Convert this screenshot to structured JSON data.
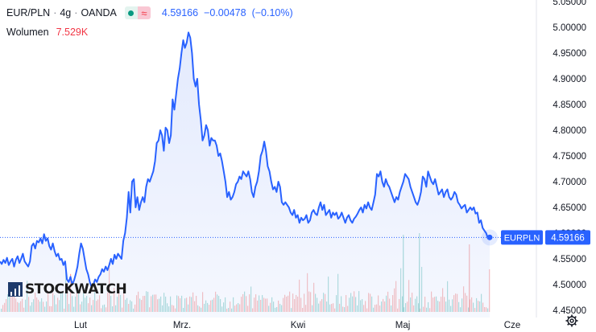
{
  "legend": {
    "symbol": "EUR/PLN",
    "interval": "4g",
    "exchange": "OANDA",
    "price": "4.59166",
    "change": "−0.00478",
    "change_pct": "(−0.10%)",
    "volume_label": "Wolumen",
    "volume_value": "7.529K",
    "icons": [
      "market-open-dot-icon",
      "approximate-data-icon"
    ]
  },
  "logo_text": "STOCKWATCH",
  "price_label": {
    "name": "EURPLN",
    "value": "4.59166"
  },
  "colors": {
    "line": "#2962ff",
    "area": "#e3eafd",
    "label_bg": "#2962ff",
    "vol_up": "#26a69a",
    "vol_down": "#ef5350"
  },
  "chart_data": {
    "type": "area",
    "title": "",
    "ylim": [
      4.43,
      5.06
    ],
    "y_ticks": [
      "4.45000",
      "4.50000",
      "4.55000",
      "4.60000",
      "4.65000",
      "4.70000",
      "4.75000",
      "4.80000",
      "4.85000",
      "4.90000",
      "4.95000",
      "5.00000",
      "5.05000"
    ],
    "x_ticks": [
      "Lut",
      "Mrz.",
      "Kwi",
      "Maj",
      "Cze"
    ],
    "last_value": 4.59166,
    "grid": false,
    "series": [
      {
        "values": [
          4.545,
          4.54,
          4.548,
          4.542,
          4.552,
          4.538,
          4.545,
          4.55,
          4.535,
          4.548,
          4.555,
          4.542,
          4.55,
          4.56,
          4.545,
          4.54,
          4.535,
          4.545,
          4.575,
          4.58,
          4.57,
          4.585,
          4.582,
          4.59,
          4.58,
          4.598,
          4.585,
          4.59,
          4.575,
          4.568,
          4.58,
          4.565,
          4.555,
          4.56,
          4.548,
          4.55,
          4.538,
          4.545,
          4.51,
          4.505,
          4.515,
          4.5,
          4.508,
          4.52,
          4.535,
          4.56,
          4.58,
          4.57,
          4.55,
          4.53,
          4.52,
          4.505,
          4.495,
          4.5,
          4.51,
          4.505,
          4.515,
          4.52,
          4.53,
          4.525,
          4.535,
          4.528,
          4.538,
          4.55,
          4.54,
          4.558,
          4.55,
          4.56,
          4.555,
          4.55,
          4.585,
          4.6,
          4.63,
          4.68,
          4.64,
          4.7,
          4.705,
          4.65,
          4.67,
          4.645,
          4.66,
          4.67,
          4.66,
          4.69,
          4.705,
          4.7,
          4.71,
          4.72,
          4.74,
          4.775,
          4.78,
          4.8,
          4.79,
          4.76,
          4.805,
          4.8,
          4.775,
          4.79,
          4.86,
          4.84,
          4.87,
          4.9,
          4.92,
          4.95,
          4.975,
          4.96,
          4.97,
          4.99,
          4.98,
          4.95,
          4.9,
          4.885,
          4.9,
          4.85,
          4.82,
          4.78,
          4.79,
          4.81,
          4.8,
          4.77,
          4.785,
          4.78,
          4.78,
          4.77,
          4.75,
          4.755,
          4.74,
          4.72,
          4.7,
          4.67,
          4.68,
          4.665,
          4.67,
          4.68,
          4.695,
          4.7,
          4.71,
          4.705,
          4.72,
          4.715,
          4.71,
          4.72,
          4.705,
          4.68,
          4.67,
          4.69,
          4.7,
          4.72,
          4.75,
          4.76,
          4.778,
          4.76,
          4.73,
          4.72,
          4.7,
          4.685,
          4.69,
          4.68,
          4.7,
          4.69,
          4.66,
          4.655,
          4.66,
          4.655,
          4.65,
          4.64,
          4.635,
          4.645,
          4.63,
          4.635,
          4.62,
          4.63,
          4.625,
          4.628,
          4.635,
          4.62,
          4.625,
          4.64,
          4.645,
          4.638,
          4.635,
          4.65,
          4.66,
          4.645,
          4.655,
          4.635,
          4.64,
          4.645,
          4.63,
          4.64,
          4.635,
          4.64,
          4.628,
          4.632,
          4.64,
          4.63,
          4.62,
          4.63,
          4.635,
          4.625,
          4.62,
          4.628,
          4.632,
          4.638,
          4.645,
          4.65,
          4.64,
          4.655,
          4.648,
          4.66,
          4.65,
          4.645,
          4.66,
          4.675,
          4.715,
          4.71,
          4.72,
          4.7,
          4.69,
          4.705,
          4.695,
          4.69,
          4.68,
          4.67,
          4.66,
          4.67,
          4.665,
          4.68,
          4.69,
          4.7,
          4.715,
          4.71,
          4.705,
          4.69,
          4.68,
          4.67,
          4.66,
          4.655,
          4.665,
          4.68,
          4.71,
          4.705,
          4.69,
          4.72,
          4.71,
          4.7,
          4.695,
          4.705,
          4.69,
          4.675,
          4.68,
          4.685,
          4.67,
          4.68,
          4.685,
          4.67,
          4.665,
          4.67,
          4.68,
          4.675,
          4.66,
          4.655,
          4.648,
          4.652,
          4.655,
          4.64,
          4.645,
          4.65,
          4.645,
          4.65,
          4.638,
          4.64,
          4.62,
          4.625,
          4.61,
          4.605,
          4.6,
          4.59,
          4.592
        ]
      }
    ]
  }
}
